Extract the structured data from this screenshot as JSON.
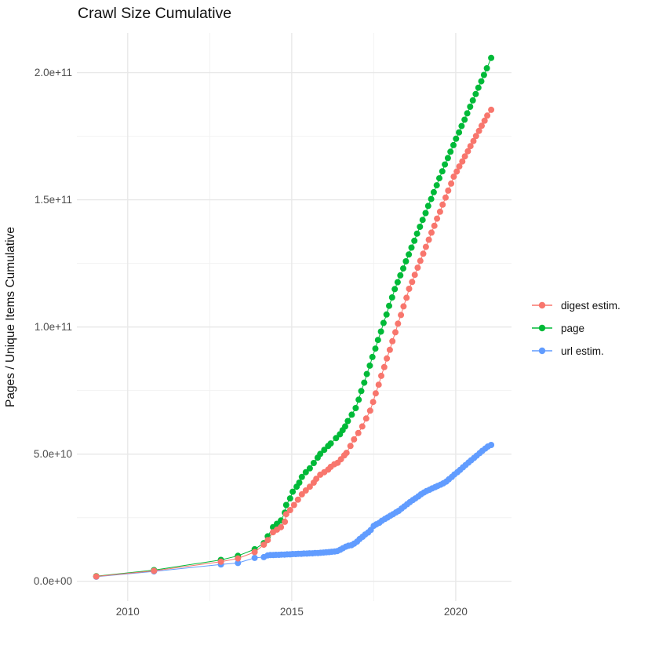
{
  "chart_data": {
    "type": "scatter",
    "subtype": "points-with-lines (cumulative time series)",
    "title": "Crawl Size Cumulative",
    "xlabel": "",
    "ylabel": "Pages / Unique Items Cumulative",
    "value_unit": "billions (1e9 items); y tick labels use scientific notation",
    "grid": true,
    "legend_position": "right",
    "background_color": "#FFFFFF",
    "grid_major_color": "#E8E8E8",
    "grid_minor_color": "#F2F2F2",
    "tick_label_color": "#4D4D4D",
    "x_axis": {
      "range": [
        2008.45,
        2021.7
      ],
      "ticks": [
        {
          "value": 2010,
          "label": "2010"
        },
        {
          "value": 2015,
          "label": "2015"
        },
        {
          "value": 2020,
          "label": "2020"
        }
      ],
      "minor_ticks": [
        2012.5,
        2017.5
      ]
    },
    "y_axis": {
      "range_billions": [
        -7.8,
        215.6
      ],
      "ticks": [
        {
          "value": 0,
          "label": "0.0e+00"
        },
        {
          "value": 50,
          "label": "5.0e+10"
        },
        {
          "value": 100,
          "label": "1.0e+11"
        },
        {
          "value": 150,
          "label": "1.5e+11"
        },
        {
          "value": 200,
          "label": "2.0e+11"
        }
      ],
      "minor_ticks": [
        25,
        75,
        125,
        175
      ]
    },
    "series": [
      {
        "name": "digest estim.",
        "color": "#F8766D",
        "points": [
          [
            2009.04,
            1.9
          ],
          [
            2010.8,
            4.1
          ],
          [
            2012.84,
            7.7
          ],
          [
            2013.36,
            9.0
          ],
          [
            2013.87,
            11.5
          ],
          [
            2014.15,
            14.4
          ],
          [
            2014.27,
            16.2
          ],
          [
            2014.43,
            19.3
          ],
          [
            2014.55,
            20.3
          ],
          [
            2014.67,
            21.3
          ],
          [
            2014.79,
            23.4
          ],
          [
            2014.83,
            26.4
          ],
          [
            2014.95,
            28.0
          ],
          [
            2015.07,
            30.0
          ],
          [
            2015.19,
            32.1
          ],
          [
            2015.31,
            34.2
          ],
          [
            2015.43,
            35.7
          ],
          [
            2015.55,
            37.2
          ],
          [
            2015.67,
            38.8
          ],
          [
            2015.75,
            40.3
          ],
          [
            2015.87,
            41.9
          ],
          [
            2015.99,
            42.9
          ],
          [
            2016.11,
            43.9
          ],
          [
            2016.19,
            45.0
          ],
          [
            2016.3,
            46.0
          ],
          [
            2016.4,
            46.6
          ],
          [
            2016.5,
            48.0
          ],
          [
            2016.6,
            49.5
          ],
          [
            2016.67,
            50.5
          ],
          [
            2016.79,
            53.2
          ],
          [
            2016.9,
            55.8
          ],
          [
            2017.03,
            58.3
          ],
          [
            2017.15,
            60.9
          ],
          [
            2017.27,
            64.0
          ],
          [
            2017.39,
            67.1
          ],
          [
            2017.48,
            70.5
          ],
          [
            2017.56,
            73.9
          ],
          [
            2017.65,
            77.3
          ],
          [
            2017.73,
            80.8
          ],
          [
            2017.82,
            84.2
          ],
          [
            2017.9,
            87.6
          ],
          [
            2017.99,
            91.0
          ],
          [
            2018.07,
            94.4
          ],
          [
            2018.16,
            97.9
          ],
          [
            2018.24,
            101.3
          ],
          [
            2018.33,
            104.7
          ],
          [
            2018.41,
            108.1
          ],
          [
            2018.5,
            111.5
          ],
          [
            2018.58,
            115.0
          ],
          [
            2018.67,
            117.7
          ],
          [
            2018.75,
            120.5
          ],
          [
            2018.84,
            123.3
          ],
          [
            2018.92,
            126.0
          ],
          [
            2019.01,
            128.8
          ],
          [
            2019.09,
            131.5
          ],
          [
            2019.18,
            134.3
          ],
          [
            2019.26,
            137.1
          ],
          [
            2019.35,
            139.8
          ],
          [
            2019.43,
            142.6
          ],
          [
            2019.52,
            145.3
          ],
          [
            2019.6,
            148.1
          ],
          [
            2019.69,
            150.9
          ],
          [
            2019.77,
            153.6
          ],
          [
            2019.86,
            156.4
          ],
          [
            2019.94,
            159.1
          ],
          [
            2020.03,
            161.1
          ],
          [
            2020.11,
            163.1
          ],
          [
            2020.2,
            165.1
          ],
          [
            2020.28,
            167.1
          ],
          [
            2020.37,
            169.1
          ],
          [
            2020.45,
            171.1
          ],
          [
            2020.54,
            173.1
          ],
          [
            2020.62,
            175.1
          ],
          [
            2020.71,
            177.1
          ],
          [
            2020.79,
            179.1
          ],
          [
            2020.88,
            181.1
          ],
          [
            2020.96,
            183.1
          ],
          [
            2021.08,
            185.4
          ]
        ]
      },
      {
        "name": "page",
        "color": "#00BA38",
        "points": [
          [
            2009.04,
            2.0
          ],
          [
            2010.8,
            4.4
          ],
          [
            2012.84,
            8.4
          ],
          [
            2013.36,
            10.0
          ],
          [
            2013.87,
            12.6
          ],
          [
            2014.15,
            15.0
          ],
          [
            2014.27,
            17.7
          ],
          [
            2014.43,
            21.3
          ],
          [
            2014.55,
            22.6
          ],
          [
            2014.67,
            23.9
          ],
          [
            2014.79,
            27.0
          ],
          [
            2014.83,
            30.0
          ],
          [
            2014.95,
            32.6
          ],
          [
            2015.03,
            35.2
          ],
          [
            2015.15,
            37.2
          ],
          [
            2015.23,
            38.8
          ],
          [
            2015.31,
            41.0
          ],
          [
            2015.43,
            42.9
          ],
          [
            2015.55,
            44.4
          ],
          [
            2015.67,
            46.5
          ],
          [
            2015.79,
            48.6
          ],
          [
            2015.87,
            50.1
          ],
          [
            2015.99,
            51.7
          ],
          [
            2016.11,
            53.2
          ],
          [
            2016.19,
            54.2
          ],
          [
            2016.35,
            56.3
          ],
          [
            2016.47,
            57.8
          ],
          [
            2016.55,
            59.4
          ],
          [
            2016.63,
            60.9
          ],
          [
            2016.71,
            63.0
          ],
          [
            2016.83,
            65.5
          ],
          [
            2016.95,
            68.1
          ],
          [
            2017.04,
            71.4
          ],
          [
            2017.12,
            74.8
          ],
          [
            2017.21,
            78.1
          ],
          [
            2017.29,
            81.5
          ],
          [
            2017.38,
            84.8
          ],
          [
            2017.46,
            88.2
          ],
          [
            2017.55,
            91.5
          ],
          [
            2017.63,
            94.9
          ],
          [
            2017.72,
            98.2
          ],
          [
            2017.8,
            101.6
          ],
          [
            2017.89,
            104.9
          ],
          [
            2017.97,
            108.3
          ],
          [
            2018.06,
            111.6
          ],
          [
            2018.14,
            114.9
          ],
          [
            2018.23,
            117.6
          ],
          [
            2018.31,
            120.3
          ],
          [
            2018.4,
            123.0
          ],
          [
            2018.48,
            125.8
          ],
          [
            2018.57,
            128.5
          ],
          [
            2018.65,
            131.2
          ],
          [
            2018.74,
            133.9
          ],
          [
            2018.82,
            136.7
          ],
          [
            2018.91,
            139.4
          ],
          [
            2018.99,
            142.1
          ],
          [
            2019.08,
            144.8
          ],
          [
            2019.16,
            147.6
          ],
          [
            2019.25,
            150.3
          ],
          [
            2019.33,
            153.0
          ],
          [
            2019.42,
            155.7
          ],
          [
            2019.5,
            158.5
          ],
          [
            2019.59,
            161.2
          ],
          [
            2019.67,
            163.9
          ],
          [
            2019.76,
            166.4
          ],
          [
            2019.84,
            168.9
          ],
          [
            2019.93,
            171.5
          ],
          [
            2020.01,
            174.0
          ],
          [
            2020.1,
            176.5
          ],
          [
            2020.18,
            179.0
          ],
          [
            2020.27,
            181.5
          ],
          [
            2020.35,
            184.0
          ],
          [
            2020.44,
            186.6
          ],
          [
            2020.52,
            189.1
          ],
          [
            2020.61,
            191.6
          ],
          [
            2020.69,
            194.1
          ],
          [
            2020.78,
            196.6
          ],
          [
            2020.86,
            199.1
          ],
          [
            2020.95,
            201.7
          ],
          [
            2021.08,
            205.8
          ]
        ]
      },
      {
        "name": "url estim.",
        "color": "#619CFF",
        "points": [
          [
            2009.04,
            1.8
          ],
          [
            2010.8,
            3.9
          ],
          [
            2012.84,
            6.6
          ],
          [
            2013.36,
            7.2
          ],
          [
            2013.87,
            9.2
          ],
          [
            2014.15,
            9.5
          ],
          [
            2014.27,
            10.2
          ],
          [
            2014.35,
            10.3
          ],
          [
            2014.44,
            10.3
          ],
          [
            2014.52,
            10.4
          ],
          [
            2014.61,
            10.4
          ],
          [
            2014.69,
            10.5
          ],
          [
            2014.78,
            10.5
          ],
          [
            2014.86,
            10.6
          ],
          [
            2014.95,
            10.6
          ],
          [
            2015.03,
            10.7
          ],
          [
            2015.12,
            10.7
          ],
          [
            2015.2,
            10.8
          ],
          [
            2015.29,
            10.8
          ],
          [
            2015.37,
            10.9
          ],
          [
            2015.46,
            10.9
          ],
          [
            2015.54,
            11.0
          ],
          [
            2015.63,
            11.0
          ],
          [
            2015.71,
            11.1
          ],
          [
            2015.8,
            11.1
          ],
          [
            2015.88,
            11.2
          ],
          [
            2015.97,
            11.3
          ],
          [
            2016.05,
            11.4
          ],
          [
            2016.14,
            11.5
          ],
          [
            2016.22,
            11.6
          ],
          [
            2016.31,
            11.7
          ],
          [
            2016.39,
            11.9
          ],
          [
            2016.48,
            12.4
          ],
          [
            2016.56,
            13.0
          ],
          [
            2016.65,
            13.6
          ],
          [
            2016.73,
            14.0
          ],
          [
            2016.82,
            14.2
          ],
          [
            2016.9,
            14.8
          ],
          [
            2016.99,
            15.6
          ],
          [
            2017.07,
            16.6
          ],
          [
            2017.16,
            17.5
          ],
          [
            2017.24,
            18.4
          ],
          [
            2017.33,
            19.2
          ],
          [
            2017.41,
            20.2
          ],
          [
            2017.5,
            21.8
          ],
          [
            2017.58,
            22.4
          ],
          [
            2017.67,
            23.0
          ],
          [
            2017.75,
            23.8
          ],
          [
            2017.84,
            24.5
          ],
          [
            2017.92,
            25.1
          ],
          [
            2018.01,
            25.8
          ],
          [
            2018.09,
            26.4
          ],
          [
            2018.18,
            27.1
          ],
          [
            2018.26,
            27.7
          ],
          [
            2018.35,
            28.6
          ],
          [
            2018.43,
            29.4
          ],
          [
            2018.52,
            30.3
          ],
          [
            2018.6,
            31.1
          ],
          [
            2018.69,
            31.9
          ],
          [
            2018.77,
            32.6
          ],
          [
            2018.86,
            33.4
          ],
          [
            2018.94,
            34.2
          ],
          [
            2019.03,
            34.9
          ],
          [
            2019.11,
            35.5
          ],
          [
            2019.2,
            36.0
          ],
          [
            2019.28,
            36.5
          ],
          [
            2019.37,
            37.0
          ],
          [
            2019.45,
            37.5
          ],
          [
            2019.54,
            38.0
          ],
          [
            2019.62,
            38.5
          ],
          [
            2019.71,
            39.2
          ],
          [
            2019.79,
            40.1
          ],
          [
            2019.88,
            41.0
          ],
          [
            2019.96,
            42.0
          ],
          [
            2020.05,
            42.9
          ],
          [
            2020.13,
            43.8
          ],
          [
            2020.22,
            44.8
          ],
          [
            2020.3,
            45.7
          ],
          [
            2020.39,
            46.7
          ],
          [
            2020.47,
            47.6
          ],
          [
            2020.56,
            48.5
          ],
          [
            2020.64,
            49.4
          ],
          [
            2020.73,
            50.4
          ],
          [
            2020.81,
            51.3
          ],
          [
            2020.9,
            52.2
          ],
          [
            2020.98,
            53.0
          ],
          [
            2021.08,
            53.6
          ]
        ]
      }
    ]
  }
}
